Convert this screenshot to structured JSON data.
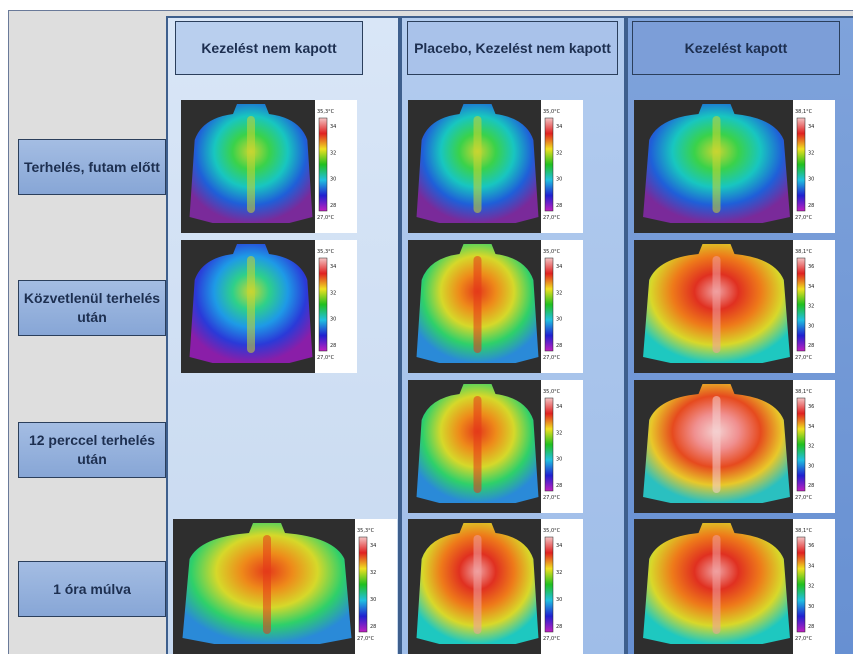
{
  "columns": [
    {
      "title": "Kezelést nem kapott"
    },
    {
      "title": "Placebo, Kezelést nem kapott"
    },
    {
      "title": "Kezelést kapott"
    }
  ],
  "rows": [
    {
      "label": "Terhelés, futam előtt"
    },
    {
      "label": "Közvetlenül terhelés után"
    },
    {
      "label": "12 perccel terhelés után"
    },
    {
      "label": "1 óra múlva"
    }
  ],
  "thermograms": [
    {
      "id": "c1r1",
      "scale_max": "35,3°C",
      "scale_min": "27,0°C",
      "ticks": [
        "34",
        "32",
        "30",
        "28"
      ],
      "theme": "cool"
    },
    {
      "id": "c2r1",
      "scale_max": "35,0°C",
      "scale_min": "27,0°C",
      "ticks": [
        "34",
        "32",
        "30",
        "28"
      ],
      "theme": "cool"
    },
    {
      "id": "c3r1",
      "scale_max": "38,1°C",
      "scale_min": "27,0°C",
      "ticks": [
        "34",
        "32",
        "30",
        "28"
      ],
      "theme": "cool"
    },
    {
      "id": "c1r2",
      "scale_max": "35,3°C",
      "scale_min": "27,0°C",
      "ticks": [
        "34",
        "32",
        "30",
        "28"
      ],
      "theme": "cold"
    },
    {
      "id": "c2r2",
      "scale_max": "35,0°C",
      "scale_min": "27,0°C",
      "ticks": [
        "34",
        "32",
        "30",
        "28"
      ],
      "theme": "warm"
    },
    {
      "id": "c3r2",
      "scale_max": "38,1°C",
      "scale_min": "27,0°C",
      "ticks": [
        "36",
        "34",
        "32",
        "30",
        "28"
      ],
      "theme": "hot"
    },
    {
      "id": "c2r3",
      "scale_max": "35,0°C",
      "scale_min": "27,0°C",
      "ticks": [
        "34",
        "32",
        "30",
        "28"
      ],
      "theme": "warm"
    },
    {
      "id": "c3r3",
      "scale_max": "38,1°C",
      "scale_min": "27,0°C",
      "ticks": [
        "36",
        "34",
        "32",
        "30",
        "28"
      ],
      "theme": "veryhot"
    },
    {
      "id": "c1r4",
      "scale_max": "35,3°C",
      "scale_min": "27,0°C",
      "ticks": [
        "34",
        "32",
        "30",
        "28"
      ],
      "theme": "warm"
    },
    {
      "id": "c2r4",
      "scale_max": "35,0°C",
      "scale_min": "27,0°C",
      "ticks": [
        "34",
        "32",
        "30",
        "28"
      ],
      "theme": "hot"
    },
    {
      "id": "c3r4",
      "scale_max": "38,1°C",
      "scale_min": "27,0°C",
      "ticks": [
        "36",
        "34",
        "32",
        "30",
        "28"
      ],
      "theme": "hot"
    }
  ],
  "colors": {
    "border": "#3e5f8d",
    "label_text": "#1d2f50"
  }
}
